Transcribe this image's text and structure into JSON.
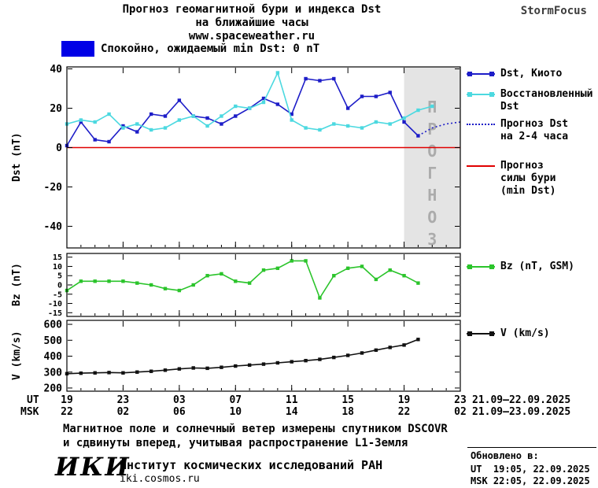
{
  "header": {
    "title_line1": "Прогноз геомагнитной бури и индекса Dst",
    "title_line2": "на ближайшие часы",
    "site": "www.spaceweather.ru",
    "brand": "StormFocus"
  },
  "status": {
    "label": "Спокойно, ожидаемый min Dst: 0 nT"
  },
  "colors": {
    "kyoto": "#1d1dc8",
    "restored": "#4cd9e0",
    "storm": "#e00000",
    "bz": "#2bc42b",
    "v": "#111111",
    "banner": "#0000e6",
    "region_fill": "#e4e4e4",
    "region_text": "#ababab"
  },
  "legend": {
    "kyoto": "Dst, Киото",
    "restored": "Восстановленный\nDst",
    "forecast": "Прогноз Dst\nна 2-4 часа",
    "storm": "Прогноз\nсилы бури\n(min Dst)",
    "bz": "Bz (nT, GSM)",
    "v": "V (km/s)"
  },
  "chart_data": [
    {
      "type": "line",
      "panel": "dst",
      "ylabel": "Dst (nT)",
      "xlim": [
        0,
        28
      ],
      "ylim": [
        -51,
        41
      ],
      "yticks": [
        40,
        20,
        0,
        -20,
        -40
      ],
      "xticks": [
        0,
        4,
        8,
        12,
        16,
        20,
        24,
        28
      ],
      "x_unit": "hours, hourly samples starting 19:00 UT 21.09.2025",
      "forecast_region": {
        "x0": 24,
        "x1": 28,
        "label": "ПРОГНОЗ"
      },
      "zero_line": 0,
      "series": [
        {
          "name": "Dst, Киото",
          "color_key": "kyoto",
          "marker": "square",
          "values": [
            1,
            13,
            4,
            3,
            11,
            8,
            17,
            16,
            24,
            16,
            15,
            12,
            16,
            20,
            25,
            22,
            17,
            35,
            34,
            35,
            20,
            26,
            26,
            28,
            13,
            6
          ]
        },
        {
          "name": "Восстановленный Dst",
          "color_key": "restored",
          "marker": "square",
          "values": [
            12,
            14,
            13,
            17,
            10,
            12,
            9,
            10,
            14,
            16,
            11,
            16,
            21,
            20,
            23,
            38,
            14,
            10,
            9,
            12,
            11,
            10,
            13,
            12,
            15,
            19,
            21
          ]
        },
        {
          "name": "Прогноз Dst на 2-4 часа",
          "color_key": "kyoto",
          "dashed": true,
          "x": [
            25,
            26,
            27,
            28
          ],
          "values": [
            6,
            10,
            12,
            13
          ]
        }
      ]
    },
    {
      "type": "line",
      "panel": "bz",
      "ylabel": "Bz (nT)",
      "xlim": [
        0,
        28
      ],
      "ylim": [
        -17,
        17
      ],
      "yticks": [
        15,
        10,
        5,
        0,
        -5,
        -10,
        -15
      ],
      "xticks": [
        0,
        4,
        8,
        12,
        16,
        20,
        24,
        28
      ],
      "tick_font": 10,
      "series": [
        {
          "name": "Bz (nT, GSM)",
          "color_key": "bz",
          "marker": "square",
          "values": [
            -3,
            2,
            2,
            2,
            2,
            1,
            0,
            -2,
            -3,
            0,
            5,
            6,
            2,
            1,
            8,
            9,
            13,
            13,
            -7,
            5,
            9,
            10,
            3,
            8,
            5,
            1
          ]
        }
      ]
    },
    {
      "type": "line",
      "panel": "v",
      "ylabel": "V (km/s)",
      "xlim": [
        0,
        28
      ],
      "ylim": [
        180,
        625
      ],
      "yticks": [
        600,
        500,
        400,
        300,
        200
      ],
      "xticks": [
        0,
        4,
        8,
        12,
        16,
        20,
        24,
        28
      ],
      "series": [
        {
          "name": "V (km/s)",
          "color_key": "v",
          "marker": "square",
          "values": [
            290,
            293,
            295,
            297,
            295,
            300,
            305,
            312,
            320,
            326,
            324,
            330,
            338,
            344,
            350,
            358,
            365,
            372,
            380,
            392,
            405,
            420,
            438,
            455,
            470,
            505
          ]
        }
      ]
    }
  ],
  "x_axis": {
    "ut_label": "UT",
    "msk_label": "MSK",
    "ut_ticks": [
      "19",
      "23",
      "03",
      "07",
      "11",
      "15",
      "19",
      "23"
    ],
    "msk_ticks": [
      "22",
      "02",
      "06",
      "10",
      "14",
      "18",
      "22",
      "02"
    ],
    "ut_date_range": "21.09—22.09.2025",
    "msk_date_range": "21.09—23.09.2025"
  },
  "footer": {
    "note_line1": "Магнитное поле и солнечный ветер измерены спутником DSCOVR",
    "note_line2": "и сдвинуты вперед, учитывая распространение L1-Земля",
    "logo": "ИКИ",
    "institute": "Институт космических исследований РАН",
    "site": "iki.cosmos.ru",
    "updated_heading": "Обновлено в:",
    "updated_ut": "UT  19:05, 22.09.2025",
    "updated_msk": "MSK 22:05, 22.09.2025"
  }
}
